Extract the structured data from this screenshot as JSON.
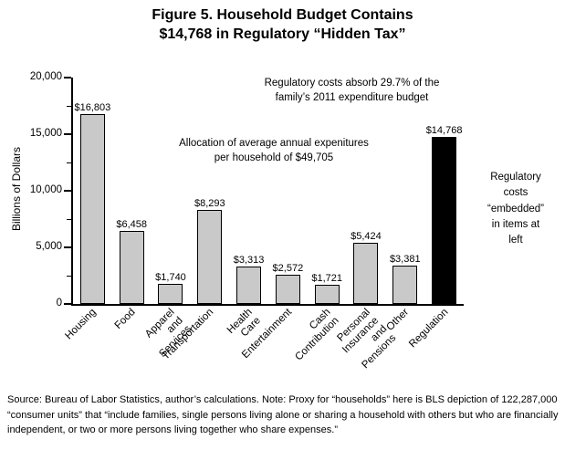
{
  "title": {
    "line1": "Figure 5. Household Budget Contains",
    "line2": "$14,768 in Regulatory “Hidden Tax”"
  },
  "annotations": {
    "regulatory_absorb": "Regulatory costs absorb 29.7% of the\nfamily’s 2011 expenditure budget",
    "allocation": "Allocation of average annual expenitures\nper household of $49,705",
    "right_note": "Regulatory\ncosts\n“embedded”\nin items at\nleft"
  },
  "chart_data": {
    "type": "bar",
    "title": "Figure 5. Household Budget Contains $14,768 in Regulatory “Hidden Tax”",
    "xlabel": "",
    "ylabel": "Billions of Dollars",
    "ylim": [
      0,
      20000
    ],
    "grid": false,
    "legend": "none",
    "yticks": [
      {
        "value": 0,
        "label": "0"
      },
      {
        "value": 5000,
        "label": "5,000"
      },
      {
        "value": 10000,
        "label": "10,000"
      },
      {
        "value": 15000,
        "label": "15,000"
      },
      {
        "value": 20000,
        "label": "20,000"
      }
    ],
    "yticks_minor": [
      2500,
      7500,
      12500,
      17500
    ],
    "categories": [
      "Housing",
      "Food",
      "Apparel\nand Services",
      "Transportation",
      "Health Care",
      "Entertainment",
      "Cash Contribution",
      "Personal Insurance\nand Pensions",
      "Other",
      "Regulation"
    ],
    "values": [
      16803,
      6458,
      1740,
      8293,
      3313,
      2572,
      1721,
      5424,
      3381,
      14768
    ],
    "value_labels": [
      "$16,803",
      "$6,458",
      "$1,740",
      "$8,293",
      "$3,313",
      "$2,572",
      "$1,721",
      "$5,424",
      "$3,381",
      "$14,768"
    ],
    "bar_colors": [
      "#c9c9c9",
      "#c9c9c9",
      "#c9c9c9",
      "#c9c9c9",
      "#c9c9c9",
      "#c9c9c9",
      "#c9c9c9",
      "#c9c9c9",
      "#c9c9c9",
      "#000000"
    ],
    "bar_border_color": "#000000"
  },
  "source_note": "Source: Bureau of Labor Statistics, author’s calculations. Note: Proxy for “households” here is BLS depiction of 122,287,000 “consumer units” that “include families, single persons living alone or sharing a household with others but who are financially independent, or two or more persons living together who share expenses.”"
}
